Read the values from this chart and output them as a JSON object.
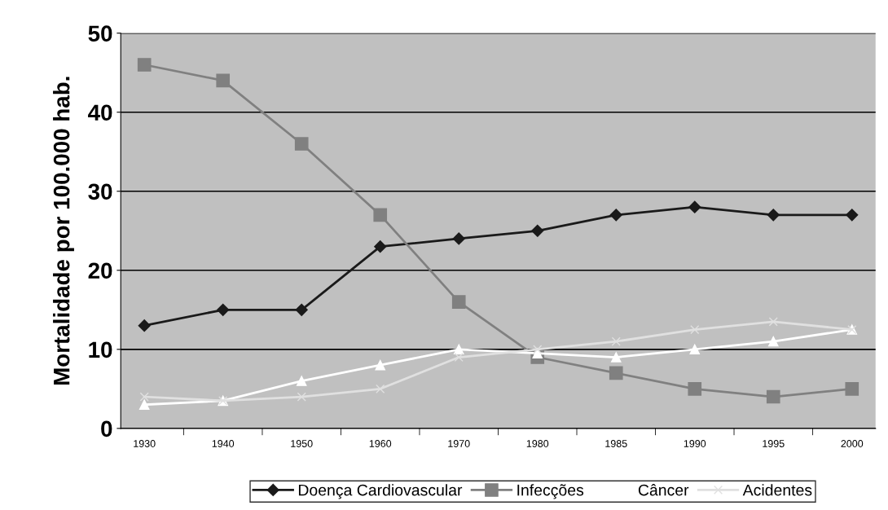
{
  "chart_data": {
    "type": "line",
    "ylabel": "Mortalidade por 100.000 hab.",
    "categories": [
      "1930",
      "1940",
      "1950",
      "1960",
      "1970",
      "1980",
      "1985",
      "1990",
      "1995",
      "2000"
    ],
    "ylim": [
      0,
      50
    ],
    "yticks": [
      0,
      10,
      20,
      30,
      40,
      50
    ],
    "grid": "y",
    "legend": "bottom",
    "series": [
      {
        "name": "Doença Cardiovascular",
        "color": "#1a1a1a",
        "marker": "diamond",
        "values": [
          13,
          15,
          15,
          23,
          24,
          25,
          27,
          28,
          27,
          27
        ]
      },
      {
        "name": "Infecções",
        "color": "#808080",
        "marker": "square",
        "values": [
          46,
          44,
          36,
          27,
          16,
          9,
          7,
          5,
          4,
          5
        ]
      },
      {
        "name": "Câncer",
        "color": "#ffffff",
        "marker": "triangle",
        "values": [
          3,
          3.5,
          6,
          8,
          10,
          9.5,
          9,
          10,
          11,
          12.5
        ]
      },
      {
        "name": "Acidentes",
        "color": "#e0e0e0",
        "marker": "cross",
        "values": [
          4,
          3.5,
          4,
          5,
          9,
          10,
          11,
          12.5,
          13.5,
          12.5
        ]
      }
    ]
  }
}
